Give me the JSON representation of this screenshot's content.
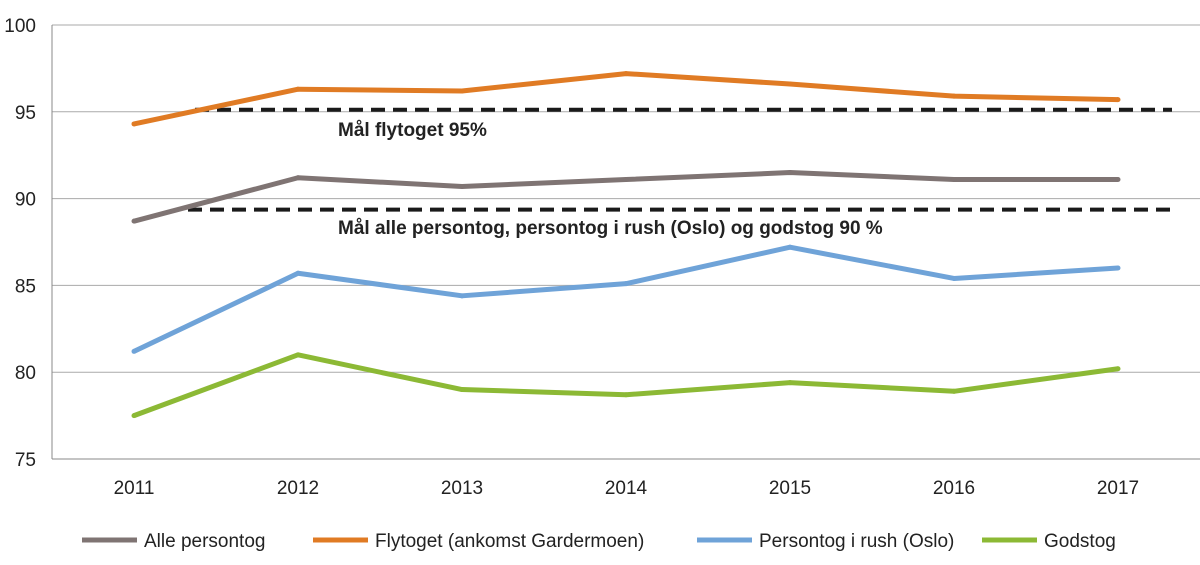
{
  "chart_data": {
    "type": "line",
    "title": "",
    "xlabel": "",
    "ylabel": "",
    "categories": [
      "2011",
      "2012",
      "2013",
      "2014",
      "2015",
      "2016",
      "2017"
    ],
    "ylim": [
      75,
      100
    ],
    "yticks": [
      75,
      80,
      85,
      90,
      95,
      100
    ],
    "grid": true,
    "legend": "bottom",
    "series": [
      {
        "name": "Alle persontog",
        "color": "#7f7473",
        "values": [
          88.7,
          91.2,
          90.7,
          91.1,
          91.5,
          91.1,
          91.1
        ]
      },
      {
        "name": "Flytoget (ankomst Gardermoen)",
        "color": "#e07b24",
        "values": [
          94.3,
          96.3,
          96.2,
          97.2,
          96.6,
          95.9,
          95.7
        ]
      },
      {
        "name": "Persontog i rush (Oslo)",
        "color": "#6fa3d8",
        "values": [
          81.2,
          85.7,
          84.4,
          85.1,
          87.2,
          85.4,
          86.0
        ]
      },
      {
        "name": "Godstog",
        "color": "#8cb935",
        "values": [
          77.5,
          81.0,
          79.0,
          78.7,
          79.4,
          78.9,
          80.2
        ]
      }
    ],
    "targets": [
      {
        "label": "Mål flytoget 95%",
        "value": 95
      },
      {
        "label": "Mål alle persontog, persontog i rush (Oslo) og godstog 90 %",
        "value": 90
      }
    ]
  }
}
